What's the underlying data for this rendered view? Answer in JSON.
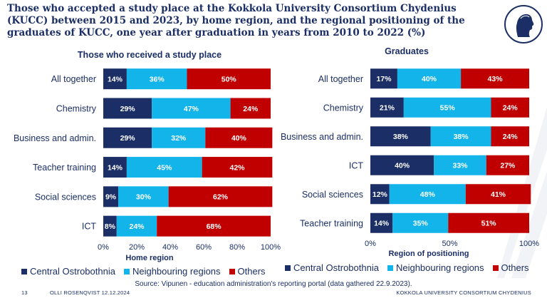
{
  "title": "Those who accepted a study place at the Kokkola University Consortium Chydenius (KUCC) between 2015 and 2023, by home region, and the regional positioning of the graduates of KUCC, one year after graduation in years from 2010 to 2022 (%)",
  "colors": {
    "central": "#1b2f66",
    "neighbouring": "#12b4ea",
    "others": "#c00000"
  },
  "chart_data": [
    {
      "type": "bar",
      "orientation": "horizontal",
      "stacked": true,
      "title": "Those who received a study place",
      "xlabel": "Home region",
      "categories": [
        "All together",
        "Chemistry",
        "Business and admin.",
        "Teacher training",
        "Social sciences",
        "ICT"
      ],
      "series": [
        {
          "name": "Central Ostrobothnia",
          "values": [
            14,
            29,
            29,
            14,
            9,
            8
          ],
          "labels": [
            "14%",
            "29%",
            "29%",
            "14%",
            "9%",
            "8%"
          ]
        },
        {
          "name": "Neighbouring regions",
          "values": [
            36,
            47,
            32,
            45,
            30,
            24
          ],
          "labels": [
            "36%",
            "47%",
            "32%",
            "45%",
            "30%",
            "24%"
          ]
        },
        {
          "name": "Others",
          "values": [
            50,
            24,
            40,
            42,
            62,
            68
          ],
          "labels": [
            "50%",
            "24%",
            "40%",
            "42%",
            "62%",
            "68%"
          ]
        }
      ],
      "xlim": [
        0,
        100
      ],
      "xticks": [
        "0%",
        "20%",
        "40%",
        "60%",
        "80%",
        "100%"
      ],
      "legend": "bottom"
    },
    {
      "type": "bar",
      "orientation": "horizontal",
      "stacked": true,
      "title": "Graduates",
      "xlabel": "Region of positioning",
      "categories": [
        "All together",
        "Chemistry",
        "Business and admin.",
        "ICT",
        "Social sciences",
        "Teacher training"
      ],
      "series": [
        {
          "name": "Central Ostrobothnia",
          "values": [
            17,
            21,
            38,
            40,
            12,
            14
          ],
          "labels": [
            "17%",
            "21%",
            "38%",
            "40%",
            "12%",
            "14%"
          ]
        },
        {
          "name": "Neighbouring regions",
          "values": [
            40,
            55,
            38,
            33,
            48,
            35
          ],
          "labels": [
            "40%",
            "55%",
            "38%",
            "33%",
            "48%",
            "35%"
          ]
        },
        {
          "name": "Others",
          "values": [
            43,
            24,
            24,
            27,
            41,
            51
          ],
          "labels": [
            "43%",
            "24%",
            "24%",
            "27%",
            "41%",
            "51%"
          ]
        }
      ],
      "xlim": [
        0,
        100
      ],
      "xticks": [
        "0%",
        "50%",
        "100%"
      ],
      "legend": "bottom"
    }
  ],
  "source": "Source: Vipunen - education administration's reporting portal (data gathered 22.9.2023).",
  "footer": {
    "page": "13",
    "author": "OLLI ROSENQVIST 12.12.2024",
    "org": "KOKKOLA UNIVERSITY CONSORTIUM CHYDENIUS"
  }
}
